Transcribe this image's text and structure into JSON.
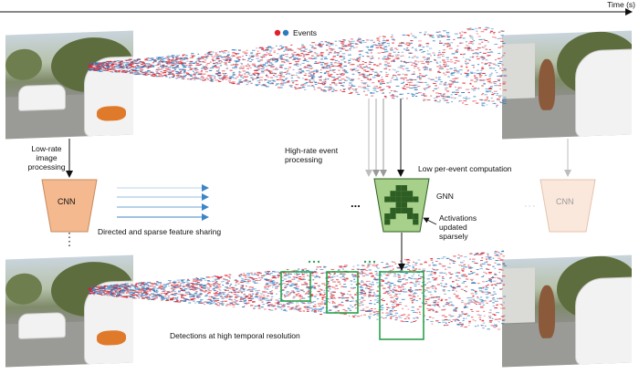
{
  "time_axis": {
    "label": "Time (s)"
  },
  "legend": {
    "label": "Events",
    "colors": [
      "#e0202a",
      "#2b7bbd"
    ]
  },
  "labels": {
    "low_rate": [
      "Low-rate",
      "image",
      "processing"
    ],
    "high_rate": [
      "High-rate event",
      "processing"
    ],
    "low_per_event": "Low per-event computation",
    "gnn": "GNN",
    "activations": [
      "Activations",
      "updated",
      "sparsely"
    ],
    "feature_sharing": "Directed and sparse feature sharing",
    "detections": "Detections at high temporal resolution",
    "cnn_left": "CNN",
    "cnn_right": "CNN",
    "ellipsis": "..."
  },
  "colors": {
    "cnn_fill": "#f4b98f",
    "cnn_fill_faded": "#fbe8dc",
    "gnn_fill": "#a7d08a",
    "gnn_dark": "#2e5e23",
    "arrow_blue": "#3d86c6",
    "box_green": "#29a24a",
    "dots_green": "#3aa35a"
  },
  "icons": {
    "time_arrow": "arrow-right-icon"
  }
}
